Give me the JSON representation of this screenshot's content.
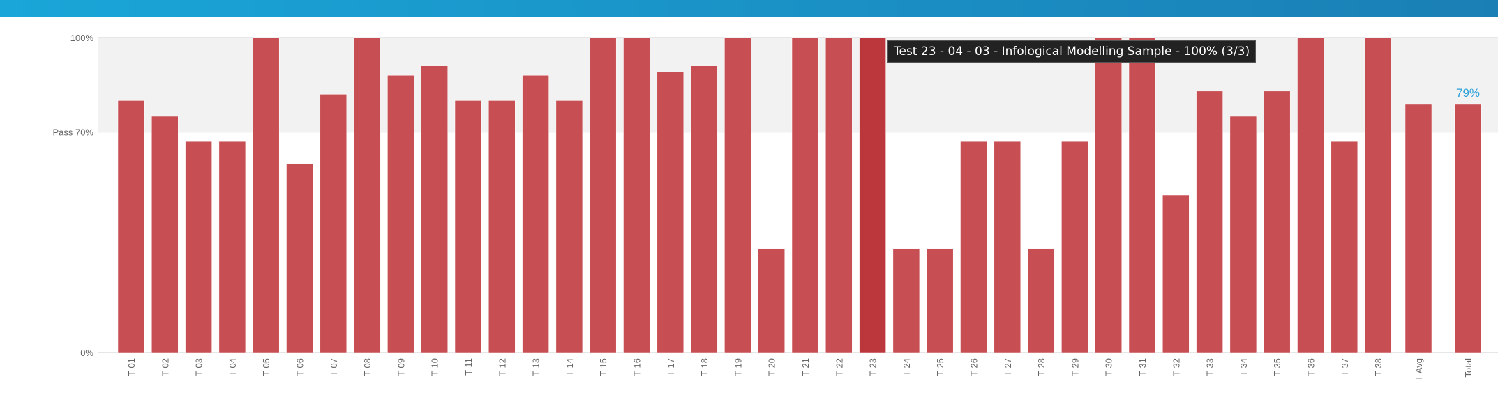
{
  "colors": {
    "bar": "#c44449",
    "bar_highlight": "#b82c31",
    "pass_band": "#f2f2f2",
    "total_label": "#2ba1d9",
    "gridline": "#cccccc",
    "axis_text": "#666666"
  },
  "tooltip": {
    "text": "Test 23 - 04 - 03 - Infological Modelling Sample - 100% (3/3)"
  },
  "chart_data": {
    "type": "bar",
    "categories": [
      "T 01",
      "T 02",
      "T 03",
      "T 04",
      "T 05",
      "T 06",
      "T 07",
      "T 08",
      "T 09",
      "T 10",
      "T 11",
      "T 12",
      "T 13",
      "T 14",
      "T 15",
      "T 16",
      "T 17",
      "T 18",
      "T 19",
      "T 20",
      "T 21",
      "T 22",
      "T 23",
      "T 24",
      "T 25",
      "T 26",
      "T 27",
      "T 28",
      "T 29",
      "T 30",
      "T 31",
      "T 32",
      "T 33",
      "T 34",
      "T 35",
      "T 36",
      "T 37",
      "T 38",
      "T Avg",
      "Total"
    ],
    "values": [
      80,
      75,
      67,
      67,
      100,
      60,
      82,
      100,
      88,
      91,
      80,
      80,
      88,
      80,
      100,
      100,
      89,
      91,
      100,
      33,
      100,
      100,
      100,
      33,
      33,
      67,
      67,
      33,
      67,
      100,
      100,
      50,
      83,
      75,
      83,
      100,
      67,
      100,
      79,
      79
    ],
    "ylim": [
      0,
      100
    ],
    "y_ticks": [
      {
        "value": 100,
        "label": "100%"
      },
      {
        "value": 70,
        "label": "Pass 70%"
      },
      {
        "value": 0,
        "label": "0%"
      }
    ],
    "pass_threshold": 70,
    "highlighted_category": "T 23",
    "total_value_label": "79%"
  }
}
